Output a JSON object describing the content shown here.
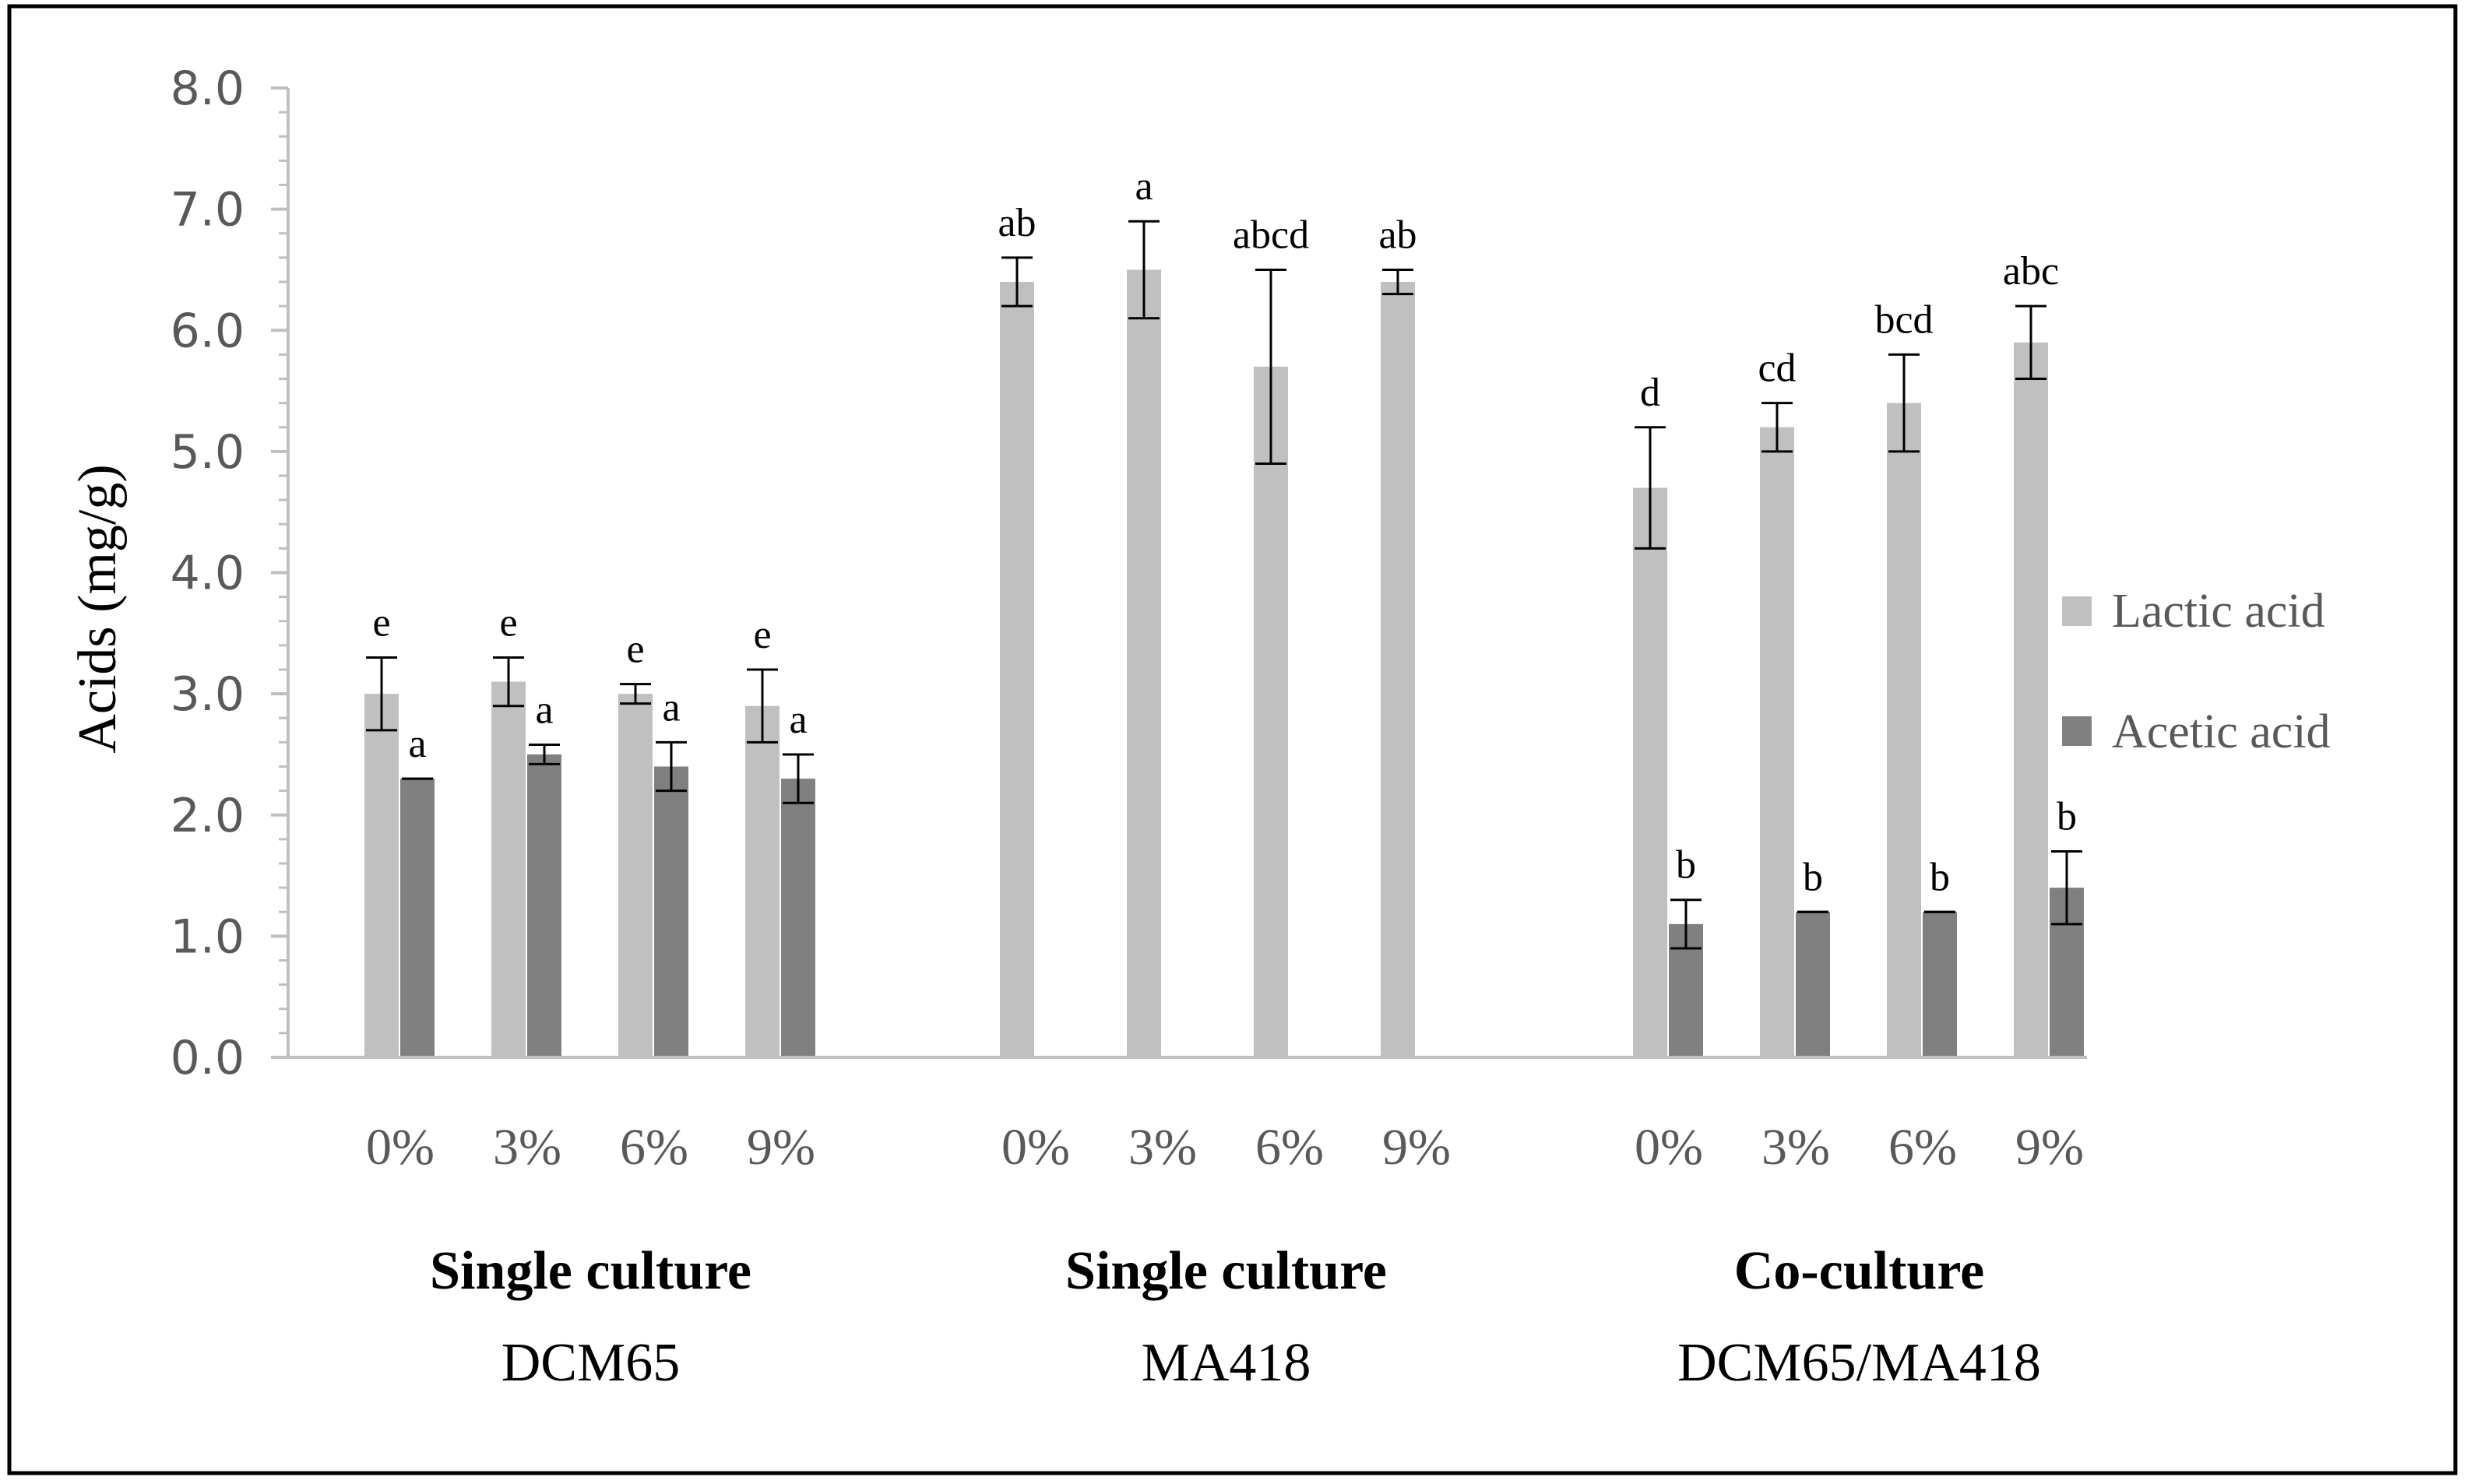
{
  "chart_data": {
    "type": "bar",
    "ylabel": "Acids (mg/g)",
    "ylim": [
      0,
      8
    ],
    "yticks": [
      "0.0",
      "1.0",
      "2.0",
      "3.0",
      "4.0",
      "5.0",
      "6.0",
      "7.0",
      "8.0"
    ],
    "legend_position": "right",
    "colors": {
      "Lactic acid": "#c0c0c0",
      "Acetic acid": "#808080",
      "error_bar": "#000000",
      "axis": "#bfbfbf"
    },
    "series_names": [
      "Lactic acid",
      "Acetic acid"
    ],
    "groups": [
      {
        "title": "Single culture",
        "subtitle": "DCM65",
        "categories": [
          "0%",
          "3%",
          "6%",
          "9%"
        ],
        "series": [
          {
            "name": "Lactic acid",
            "values": [
              3.0,
              3.1,
              3.0,
              2.9
            ],
            "errors": [
              0.3,
              0.2,
              0.08,
              0.3
            ],
            "labels": [
              "e",
              "e",
              "e",
              "e"
            ]
          },
          {
            "name": "Acetic acid",
            "values": [
              2.3,
              2.5,
              2.4,
              2.3
            ],
            "errors": [
              0.0,
              0.08,
              0.2,
              0.2
            ],
            "labels": [
              "a",
              "a",
              "a",
              "a"
            ]
          }
        ]
      },
      {
        "title": "Single culture",
        "subtitle": "MA418",
        "categories": [
          "0%",
          "3%",
          "6%",
          "9%"
        ],
        "series": [
          {
            "name": "Lactic acid",
            "values": [
              6.4,
              6.5,
              5.7,
              6.4
            ],
            "errors": [
              0.2,
              0.4,
              0.8,
              0.1
            ],
            "labels": [
              "ab",
              "a",
              "abcd",
              "ab"
            ]
          },
          {
            "name": "Acetic acid",
            "values": [
              0,
              0,
              0,
              0
            ],
            "errors": [
              0,
              0,
              0,
              0
            ],
            "labels": [
              "",
              "",
              "",
              ""
            ]
          }
        ]
      },
      {
        "title": "Co-culture",
        "subtitle": "DCM65/MA418",
        "categories": [
          "0%",
          "3%",
          "6%",
          "9%"
        ],
        "series": [
          {
            "name": "Lactic acid",
            "values": [
              4.7,
              5.2,
              5.4,
              5.9
            ],
            "errors": [
              0.5,
              0.2,
              0.4,
              0.3
            ],
            "labels": [
              "d",
              "cd",
              "bcd",
              "abc"
            ]
          },
          {
            "name": "Acetic acid",
            "values": [
              1.1,
              1.2,
              1.2,
              1.4
            ],
            "errors": [
              0.2,
              0.0,
              0.0,
              0.3
            ],
            "labels": [
              "b",
              "b",
              "b",
              "b"
            ]
          }
        ]
      }
    ]
  }
}
